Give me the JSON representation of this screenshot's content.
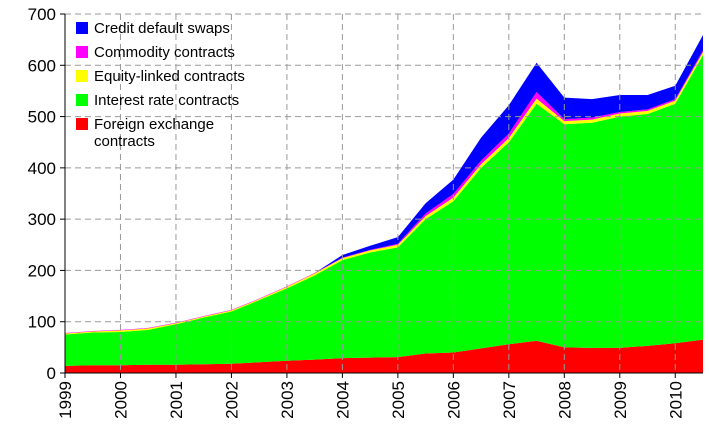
{
  "chart_data": {
    "type": "stacked_area",
    "x": [
      1999,
      1999.5,
      2000,
      2000.5,
      2001,
      2001.5,
      2002,
      2002.5,
      2003,
      2003.5,
      2004,
      2004.5,
      2005,
      2005.5,
      2006,
      2006.5,
      2007,
      2007.5,
      2008,
      2008.5,
      2009,
      2009.5,
      2010,
      2010.5
    ],
    "xlim": [
      1999,
      2010.5
    ],
    "xticks": [
      1999,
      2000,
      2001,
      2002,
      2003,
      2004,
      2005,
      2006,
      2007,
      2008,
      2009,
      2010
    ],
    "ylim": [
      0,
      700
    ],
    "yticks": [
      0,
      100,
      200,
      300,
      400,
      500,
      600,
      700
    ],
    "grid": true,
    "legend": "upper-left",
    "series": [
      {
        "name": "Foreign exchange contracts",
        "color": "#ff0000",
        "values": [
          14,
          15,
          15,
          16,
          16,
          17,
          18,
          21,
          24,
          26,
          29,
          30,
          31,
          38,
          40,
          48,
          56,
          63,
          50,
          49,
          49,
          53,
          58,
          65
        ]
      },
      {
        "name": "Interest rate contracts",
        "color": "#00ff00",
        "values": [
          61,
          64,
          65,
          68,
          79,
          91,
          102,
          121,
          141,
          164,
          191,
          205,
          214,
          262,
          295,
          352,
          394,
          462,
          435,
          439,
          451,
          452,
          467,
          555
        ]
      },
      {
        "name": "Equity-linked contracts",
        "color": "#ffff00",
        "values": [
          2,
          2,
          3,
          3,
          2,
          2,
          2,
          2,
          3,
          4,
          4,
          4,
          5,
          6,
          7,
          7,
          8,
          10,
          6,
          6,
          6,
          6,
          6,
          6
        ]
      },
      {
        "name": "Commodity contracts",
        "color": "#ff00ff",
        "values": [
          1,
          1,
          1,
          1,
          1,
          1,
          1,
          1,
          1,
          1,
          1,
          1,
          2,
          5,
          7,
          7,
          9,
          13,
          4,
          4,
          3,
          3,
          3,
          3
        ]
      },
      {
        "name": "Credit default swaps",
        "color": "#0000ff",
        "values": [
          0,
          0,
          0,
          0,
          0,
          0,
          0,
          0,
          0,
          0,
          5,
          8,
          13,
          20,
          28,
          45,
          55,
          57,
          42,
          36,
          33,
          28,
          26,
          30
        ]
      }
    ]
  }
}
